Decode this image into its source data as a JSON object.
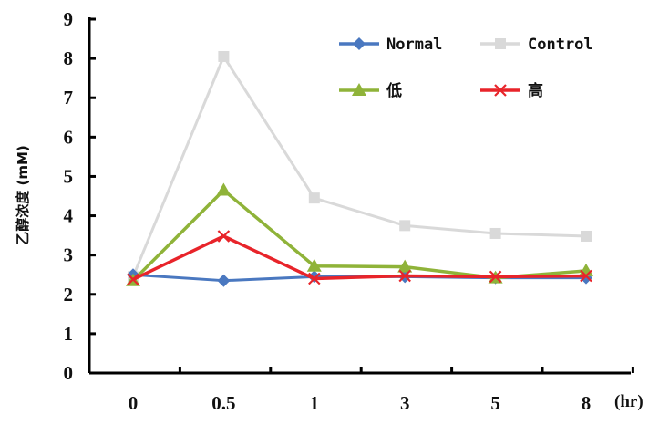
{
  "chart_data": {
    "type": "line",
    "title": "",
    "xlabel": "",
    "x_unit": "(hr)",
    "ylabel": "乙醇浓度 (mM)",
    "categories": [
      "0",
      "0.5",
      "1",
      "3",
      "5",
      "8"
    ],
    "ylim": [
      0,
      9
    ],
    "yticks": [
      "0",
      "1",
      "2",
      "3",
      "4",
      "5",
      "6",
      "7",
      "8",
      "9"
    ],
    "grid": false,
    "legend_position": "top-right",
    "series": [
      {
        "name": "Normal",
        "color": "#4a78c0",
        "marker": "diamond",
        "values": [
          2.5,
          2.35,
          2.45,
          2.45,
          2.42,
          2.42
        ]
      },
      {
        "name": "Control",
        "color": "#d9d9d9",
        "marker": "square",
        "values": [
          2.45,
          8.05,
          4.45,
          3.75,
          3.55,
          3.48
        ]
      },
      {
        "name": "低",
        "color": "#8fb339",
        "marker": "triangle",
        "values": [
          2.35,
          4.65,
          2.72,
          2.7,
          2.42,
          2.6
        ]
      },
      {
        "name": "高",
        "color": "#e8242a",
        "marker": "x",
        "values": [
          2.38,
          3.48,
          2.4,
          2.47,
          2.45,
          2.47
        ]
      }
    ]
  }
}
